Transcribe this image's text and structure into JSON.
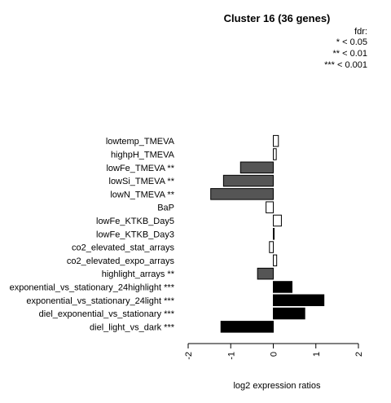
{
  "chart_data": {
    "type": "bar",
    "orientation": "horizontal",
    "title": "Cluster 16 (36 genes)",
    "xlabel": "log2 expression ratios",
    "ylabel": "",
    "xlim": [
      -2,
      2
    ],
    "xticks": [
      "-2",
      "-1",
      "0",
      "1",
      "2"
    ],
    "legend": {
      "title": "fdr:",
      "items": [
        "* < 0.05",
        "** < 0.01",
        "*** < 0.001"
      ],
      "placement": "top-right"
    },
    "categories": [
      "lowtemp_TMEVA",
      "highpH_TMEVA",
      "lowFe_TMEVA **",
      "lowSi_TMEVA **",
      "lowN_TMEVA **",
      "BaP",
      "lowFe_KTKB_Day5",
      "lowFe_KTKB_Day3",
      "co2_elevated_stat_arrays",
      "co2_elevated_expo_arrays",
      "highlight_arrays **",
      "exponential_vs_stationary_24highlight ***",
      "exponential_vs_stationary_24light ***",
      "diel_exponential_vs_stationary ***",
      "diel_light_vs_dark ***"
    ],
    "values": [
      0.12,
      0.07,
      -0.77,
      -1.17,
      -1.47,
      -0.17,
      0.19,
      0.02,
      -0.09,
      0.08,
      -0.37,
      0.44,
      1.19,
      0.74,
      -1.23
    ],
    "colors": [
      "#ffffff",
      "#ffffff",
      "#555555",
      "#555555",
      "#555555",
      "#ffffff",
      "#ffffff",
      "#ffffff",
      "#ffffff",
      "#ffffff",
      "#555555",
      "#000000",
      "#000000",
      "#000000",
      "#000000"
    ]
  }
}
